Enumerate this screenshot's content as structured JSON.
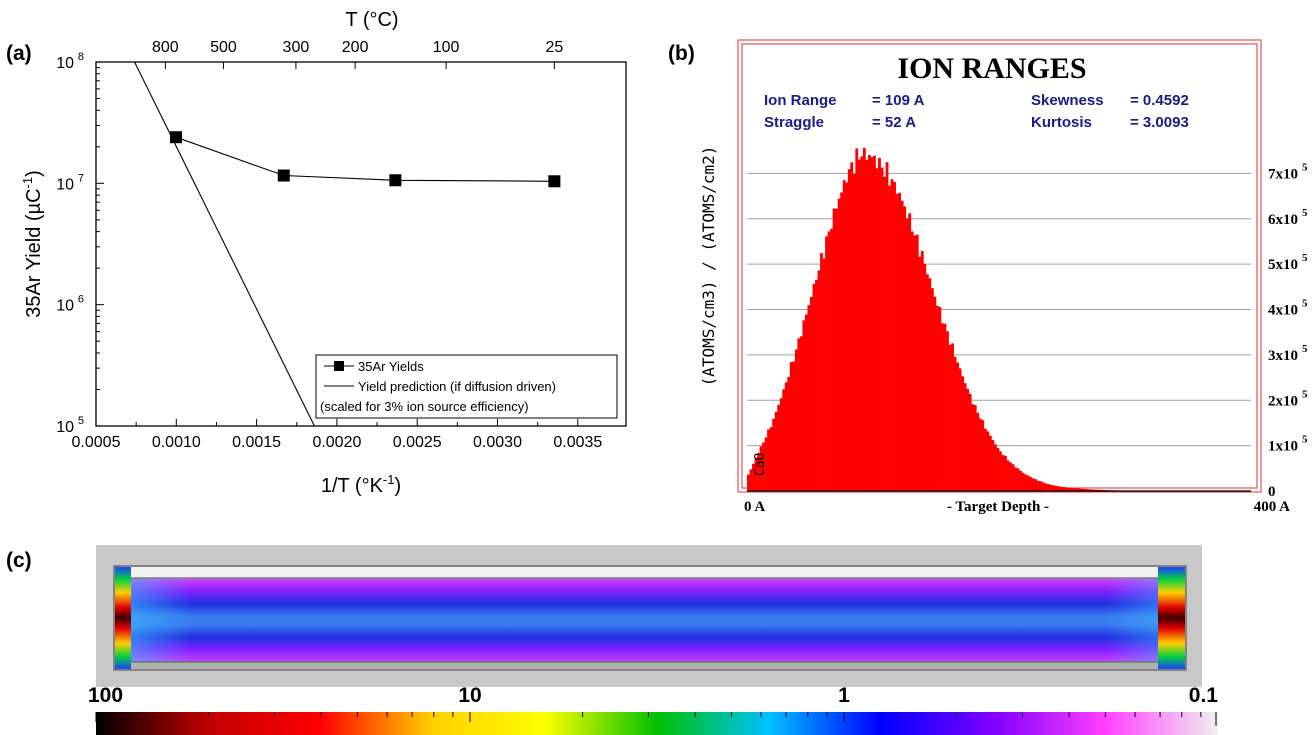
{
  "panel_labels": {
    "a": "(a)",
    "b": "(b)",
    "c": "(c)"
  },
  "chart_data": [
    {
      "id": "a",
      "type": "scatter",
      "title": "",
      "xlabel_text": "1/T (°K",
      "xlabel_sup": "-1",
      "xlabel_end": ")",
      "ylabel_text": "35Ar Yield (µC",
      "ylabel_sup": "-1",
      "ylabel_end": ")",
      "top_axis_label": "T (°C)",
      "top_ticks": [
        {
          "label": "800",
          "temp_c": 800
        },
        {
          "label": "500",
          "temp_c": 500
        },
        {
          "label": "300",
          "temp_c": 300
        },
        {
          "label": "200",
          "temp_c": 200
        },
        {
          "label": "100",
          "temp_c": 100
        },
        {
          "label": "25",
          "temp_c": 25
        }
      ],
      "xlim": [
        0.0005,
        0.0038
      ],
      "xticks": [
        "0.0005",
        "0.0010",
        "0.0015",
        "0.0020",
        "0.0025",
        "0.0030",
        "0.0035"
      ],
      "ylim": [
        100000,
        100000000
      ],
      "yscale": "log",
      "yticks": [
        {
          "value": 100000,
          "base": "10",
          "exp": "5"
        },
        {
          "value": 1000000,
          "base": "10",
          "exp": "6"
        },
        {
          "value": 10000000,
          "base": "10",
          "exp": "7"
        },
        {
          "value": 100000000,
          "base": "10",
          "exp": "8"
        }
      ],
      "series": [
        {
          "name": "35Ar Yields",
          "marker": "square",
          "x": [
            0.000998,
            0.001669,
            0.002364,
            0.003354
          ],
          "y": [
            24000000,
            11600000,
            10600000,
            10400000
          ]
        },
        {
          "name": "Yield prediction (if diffusion driven)",
          "marker": "none",
          "x": [
            0.00074,
            0.00186
          ],
          "y": [
            100000000,
            100000
          ]
        }
      ],
      "legend_note": "(scaled for 3% ion source efficiency)",
      "legend_position": "bottom-right",
      "grid": false
    },
    {
      "id": "b",
      "type": "bar",
      "title": "ION RANGES",
      "stats": [
        {
          "label": "Ion Range",
          "value": "=  109 A"
        },
        {
          "label": "Straggle",
          "value": "=  52 A"
        },
        {
          "label": "Skewness",
          "value": "= 0.4592"
        },
        {
          "label": "Kurtosis",
          "value": "= 3.0093"
        }
      ],
      "target_label": "CaO",
      "xlabel": "- Target Depth -",
      "xlim": [
        0,
        400
      ],
      "x_left_label": "0 A",
      "x_right_label": "400 A",
      "ylabel": "(ATOMS/cm3) / (ATOMS/cm2)",
      "ylim": [
        0,
        800000
      ],
      "yticks": [
        {
          "value": 0,
          "label": "0",
          "exp": ""
        },
        {
          "value": 100000,
          "label": "1x10",
          "exp": "5"
        },
        {
          "value": 200000,
          "label": "2x10",
          "exp": "5"
        },
        {
          "value": 300000,
          "label": "3x10",
          "exp": "5"
        },
        {
          "value": 400000,
          "label": "4x10",
          "exp": "5"
        },
        {
          "value": 500000,
          "label": "5x10",
          "exp": "5"
        },
        {
          "value": 600000,
          "label": "6x10",
          "exp": "5"
        },
        {
          "value": 700000,
          "label": "7x10",
          "exp": "5"
        }
      ],
      "grid": true,
      "bar_color": "#ff0000",
      "histogram": {
        "depth": [
          0,
          10,
          20,
          30,
          40,
          50,
          60,
          70,
          80,
          90,
          100,
          110,
          120,
          130,
          140,
          150,
          160,
          170,
          180,
          190,
          200,
          210,
          220,
          230,
          240,
          250,
          260,
          270,
          280,
          290,
          300,
          310,
          320,
          330,
          340
        ],
        "value": [
          30000,
          90000,
          150000,
          230000,
          320000,
          420000,
          520000,
          620000,
          700000,
          745000,
          735000,
          705000,
          660000,
          590000,
          510000,
          420000,
          340000,
          260000,
          190000,
          135000,
          90000,
          60000,
          38000,
          24000,
          14000,
          9000,
          6000,
          4000,
          2500,
          1500,
          1000,
          700,
          400,
          200,
          0
        ]
      }
    },
    {
      "id": "c",
      "type": "heatmap",
      "colorbar_labels": [
        {
          "label": "100",
          "value": 100
        },
        {
          "label": "10",
          "value": 10
        },
        {
          "label": "1",
          "value": 1
        },
        {
          "label": "0.1",
          "value": 0.1
        }
      ],
      "colorbar_scale": "log",
      "colorbar_range": [
        0.1,
        100
      ],
      "colors": [
        "#000000",
        "#c00000",
        "#ff0000",
        "#ffd000",
        "#ffff00",
        "#00c000",
        "#00c0ff",
        "#0000ff",
        "#8000ff",
        "#ff40ff",
        "#f0f0f0"
      ]
    }
  ]
}
